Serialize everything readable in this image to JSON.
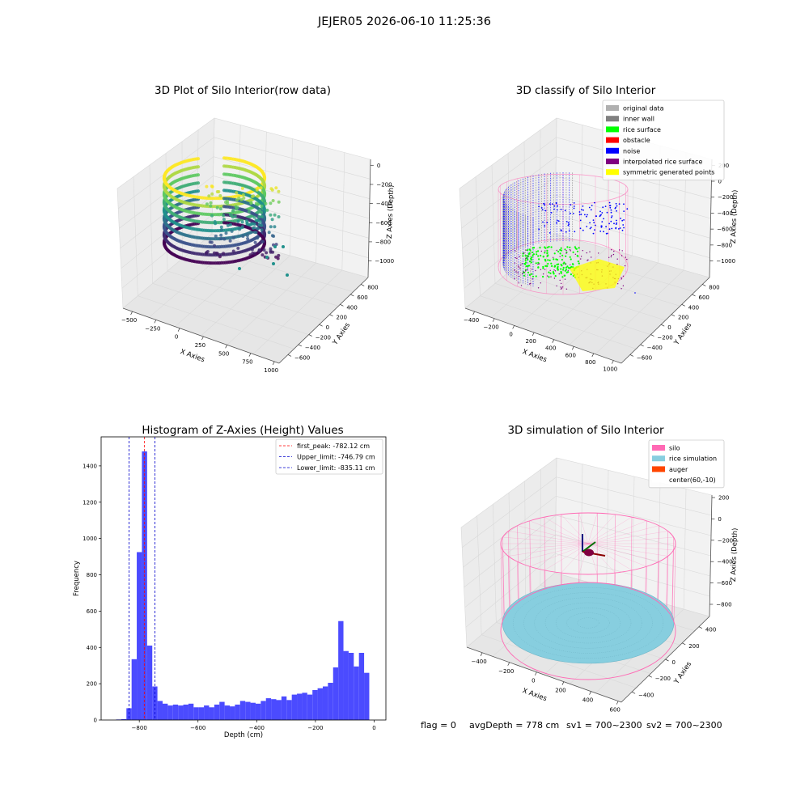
{
  "figure": {
    "suptitle": "JEJER05 2026-06-10 11:25:36",
    "status": {
      "flag": "flag = 0",
      "avg_depth": "avgDepth = 778 cm",
      "sv1": "sv1 = 700~2300",
      "sv2": "sv2 = 700~2300"
    }
  },
  "colors": {
    "hist_bar": "#4b4bff",
    "first_peak": "#ff0000",
    "limits": "#0000cc",
    "pane": "#f2f2f2",
    "grid": "#d9d9d9",
    "silo": "#ff69b4",
    "rice_simulation": "#87cedf",
    "auger": "#ff4500",
    "original_data": "#b0b0b0",
    "inner_wall": "#808080",
    "rice_surface": "#00ff00",
    "obstacle": "#ff0000",
    "noise": "#0000ff",
    "interpolated_rice_surface": "#800080",
    "symmetric_generated_points": "#ffff00"
  },
  "chart_data": [
    {
      "type": "scatter",
      "title": "3D Plot of Silo Interior(row data)",
      "xlabel": "X Axies",
      "ylabel": "Y Axies",
      "zlabel": "Z Axies (Depth)",
      "x_ticks": [
        "−500",
        "−250",
        "0",
        "250",
        "500",
        "750",
        "1000"
      ],
      "y_ticks": [
        "−600",
        "−400",
        "−200",
        "0",
        "200",
        "400",
        "600",
        "800"
      ],
      "z_ticks": [
        "0",
        "−200",
        "−400",
        "−600",
        "−800",
        "−1000"
      ],
      "colormap": "viridis",
      "color_by": "z",
      "grid": true
    },
    {
      "type": "scatter",
      "title": "3D classify of Silo Interior",
      "xlabel": "X Axies",
      "ylabel": "Y Axies",
      "zlabel": "Z Axies (Depth)",
      "x_ticks": [
        "−400",
        "−200",
        "0",
        "200",
        "400",
        "600",
        "800",
        "1000"
      ],
      "y_ticks": [
        "−600",
        "−400",
        "−200",
        "0",
        "200",
        "400",
        "600",
        "800"
      ],
      "z_ticks": [
        "200",
        "0",
        "−200",
        "−400",
        "−600",
        "−800",
        "−1000"
      ],
      "legend": [
        {
          "label": "original data",
          "color": "#b0b0b0"
        },
        {
          "label": "inner wall",
          "color": "#808080"
        },
        {
          "label": "rice surface",
          "color": "#00ff00"
        },
        {
          "label": "obstacle",
          "color": "#ff0000"
        },
        {
          "label": "noise",
          "color": "#0000ff"
        },
        {
          "label": "interpolated rice surface",
          "color": "#800080"
        },
        {
          "label": "symmetric generated points",
          "color": "#ffff00"
        }
      ],
      "legend_position": "upper-right",
      "grid": true
    },
    {
      "type": "bar",
      "title": "Histogram of Z-Axies (Height) Values",
      "xlabel": "Depth (cm)",
      "ylabel": "Frequency",
      "xlim": [
        -930,
        40
      ],
      "ylim": [
        0,
        1560
      ],
      "x_ticks": [
        -800,
        -600,
        -400,
        -200,
        0
      ],
      "x_tick_labels": [
        "−800",
        "−600",
        "−400",
        "−200",
        "0"
      ],
      "y_ticks": [
        0,
        200,
        400,
        600,
        800,
        1000,
        1200,
        1400
      ],
      "bin_width": 17.6,
      "bins_start": [
        -879,
        -861.4,
        -843.8,
        -826.2,
        -808.6,
        -791,
        -773.4,
        -755.8,
        -738.2,
        -720.6,
        -703,
        -685.4,
        -667.8,
        -650.2,
        -632.6,
        -615,
        -597.4,
        -579.8,
        -562.2,
        -544.6,
        -527,
        -509.4,
        -491.8,
        -474.2,
        -456.6,
        -439,
        -421.4,
        -403.8,
        -386.2,
        -368.6,
        -351,
        -333.4,
        -315.8,
        -298.2,
        -280.6,
        -263,
        -245.4,
        -227.8,
        -210.2,
        -192.6,
        -175,
        -157.4,
        -139.8,
        -122.2,
        -104.6,
        -87,
        -69.4,
        -51.8,
        -34.2,
        -16.6
      ],
      "values": [
        3,
        5,
        65,
        335,
        925,
        1480,
        410,
        185,
        105,
        90,
        80,
        85,
        80,
        85,
        90,
        70,
        70,
        80,
        70,
        85,
        100,
        80,
        75,
        85,
        105,
        100,
        95,
        90,
        105,
        120,
        115,
        110,
        130,
        110,
        140,
        145,
        150,
        140,
        165,
        175,
        185,
        205,
        290,
        545,
        380,
        370,
        295,
        370,
        260,
        0
      ],
      "vlines": [
        {
          "label": "first_peak: -782.12 cm",
          "value": -782.12,
          "color": "#ff0000"
        },
        {
          "label": "Upper_limit: -746.79 cm",
          "value": -746.79,
          "color": "#0000cc"
        },
        {
          "label": "Lower_limit: -835.11 cm",
          "value": -835.11,
          "color": "#0000cc"
        }
      ],
      "legend_position": "upper-right",
      "grid": false
    },
    {
      "type": "scatter",
      "title": "3D simulation of Silo Interior",
      "xlabel": "X Axies",
      "ylabel": "Y Axies",
      "zlabel": "Z Axies (Depth)",
      "x_ticks": [
        "−400",
        "−200",
        "0",
        "200",
        "400",
        "600"
      ],
      "y_ticks": [
        "−400",
        "−200",
        "0",
        "200",
        "400"
      ],
      "z_ticks": [
        "200",
        "0",
        "−200",
        "−400",
        "−600",
        "−800"
      ],
      "legend": [
        {
          "label": "silo",
          "color": "#ff69b4"
        },
        {
          "label": "rice simulation",
          "color": "#87cedf"
        },
        {
          "label": "auger",
          "color": "#ff4500"
        },
        {
          "label": "center(60,-10)",
          "color": "#ffffff"
        }
      ],
      "legend_position": "upper-right",
      "grid": true
    }
  ]
}
